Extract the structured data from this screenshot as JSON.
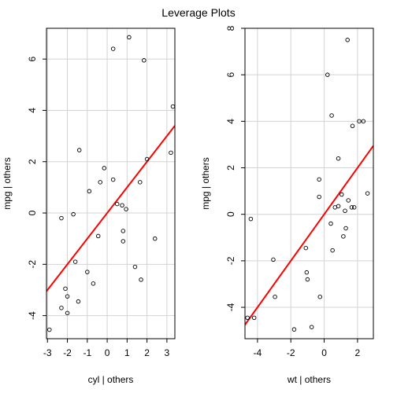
{
  "title": "Leverage Plots",
  "colors": {
    "grid": "#d3d3d3",
    "points": "#000000",
    "fit_line": "#ff0000"
  },
  "chart_data": [
    {
      "type": "scatter",
      "xlabel": "cyl | others",
      "ylabel": "mpg | others",
      "xlim": [
        -3.05,
        3.4
      ],
      "ylim": [
        -4.9,
        7.2
      ],
      "xticks": [
        -3,
        -2,
        -1,
        0,
        1,
        2,
        3
      ],
      "yticks": [
        -4,
        -2,
        0,
        2,
        4,
        6
      ],
      "grid": true,
      "fit_line": {
        "slope": 1.0,
        "intercept": 0.0
      },
      "points": [
        [
          -2.9,
          -4.55
        ],
        [
          -2.3,
          -3.7
        ],
        [
          -2.3,
          -0.2
        ],
        [
          -2.1,
          -2.95
        ],
        [
          -2.0,
          -3.25
        ],
        [
          -2.0,
          -3.9
        ],
        [
          -1.7,
          -0.05
        ],
        [
          -1.6,
          -1.9
        ],
        [
          -1.45,
          -3.45
        ],
        [
          -1.4,
          2.45
        ],
        [
          -1.0,
          -2.3
        ],
        [
          -0.9,
          0.85
        ],
        [
          -0.7,
          -2.75
        ],
        [
          -0.45,
          -0.9
        ],
        [
          -0.35,
          1.2
        ],
        [
          -0.15,
          1.75
        ],
        [
          0.3,
          1.3
        ],
        [
          0.3,
          6.4
        ],
        [
          0.5,
          0.35
        ],
        [
          0.75,
          0.3
        ],
        [
          0.8,
          -0.7
        ],
        [
          0.8,
          -1.1
        ],
        [
          0.95,
          0.15
        ],
        [
          1.1,
          6.85
        ],
        [
          1.4,
          -2.1
        ],
        [
          1.65,
          1.2
        ],
        [
          1.7,
          -2.6
        ],
        [
          1.85,
          5.95
        ],
        [
          2.0,
          2.1
        ],
        [
          2.4,
          -1.0
        ],
        [
          3.2,
          2.35
        ],
        [
          3.3,
          4.15
        ]
      ]
    },
    {
      "type": "scatter",
      "xlabel": "wt | others",
      "ylabel": "mpg | others",
      "xlim": [
        -4.75,
        2.95
      ],
      "ylim": [
        -5.35,
        8.0
      ],
      "xticks": [
        -4,
        -2,
        0,
        2
      ],
      "yticks": [
        -4,
        -2,
        0,
        2,
        4,
        6,
        8
      ],
      "grid": true,
      "fit_line": {
        "slope": 1.0,
        "intercept": 0.0
      },
      "points": [
        [
          -4.6,
          -4.45
        ],
        [
          -4.4,
          -0.2
        ],
        [
          -4.2,
          -4.45
        ],
        [
          -3.05,
          -1.95
        ],
        [
          -2.95,
          -3.55
        ],
        [
          -1.8,
          -4.95
        ],
        [
          -1.1,
          -1.45
        ],
        [
          -1.05,
          -2.5
        ],
        [
          -1.0,
          -2.8
        ],
        [
          -0.75,
          -4.85
        ],
        [
          -0.3,
          1.5
        ],
        [
          -0.3,
          0.75
        ],
        [
          -0.25,
          -3.55
        ],
        [
          0.2,
          6.0
        ],
        [
          0.4,
          -0.4
        ],
        [
          0.45,
          4.25
        ],
        [
          0.5,
          -1.55
        ],
        [
          0.65,
          0.3
        ],
        [
          0.85,
          0.35
        ],
        [
          0.85,
          2.4
        ],
        [
          1.05,
          0.85
        ],
        [
          1.15,
          -0.95
        ],
        [
          1.25,
          0.15
        ],
        [
          1.3,
          -0.6
        ],
        [
          1.4,
          7.5
        ],
        [
          1.45,
          0.6
        ],
        [
          1.65,
          0.3
        ],
        [
          1.7,
          3.8
        ],
        [
          1.8,
          0.3
        ],
        [
          2.1,
          4.0
        ],
        [
          2.35,
          4.0
        ],
        [
          2.6,
          0.9
        ]
      ]
    }
  ]
}
